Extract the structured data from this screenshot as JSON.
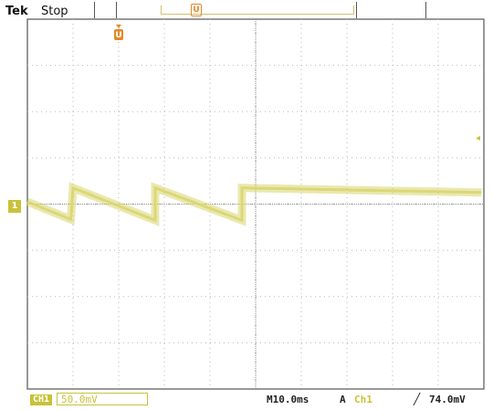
{
  "header": {
    "brand": "Tek",
    "status": "Stop",
    "trigger_position_marker": "U",
    "ch1_marker": "1"
  },
  "footer": {
    "channel_badge": "CH1",
    "volts_per_div": "50.0mV",
    "timebase": "M10.0ms",
    "trigger_mode": "A",
    "trigger_source": "Ch1",
    "trigger_slope": "╱",
    "trigger_level": "74.0mV"
  },
  "colors": {
    "trace": "#d9d670",
    "graticule": "#9a9a9a",
    "ch1": "#c8c23a",
    "trigger": "#e08a2a"
  },
  "waveform": {
    "description_free": true,
    "edges_time_div": [
      1.0,
      2.8,
      4.7
    ]
  }
}
